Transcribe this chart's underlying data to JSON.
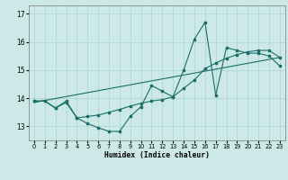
{
  "xlabel": "Humidex (Indice chaleur)",
  "bg_color": "#cce9e8",
  "line_color": "#1a6e68",
  "grid_color": "#b0d8d6",
  "xlim": [
    -0.5,
    23.5
  ],
  "ylim": [
    12.5,
    17.3
  ],
  "xticks": [
    0,
    1,
    2,
    3,
    4,
    5,
    6,
    7,
    8,
    9,
    10,
    11,
    12,
    13,
    14,
    15,
    16,
    17,
    18,
    19,
    20,
    21,
    22,
    23
  ],
  "yticks": [
    13,
    14,
    15,
    16,
    17
  ],
  "series1_x": [
    0,
    1,
    2,
    3,
    4,
    5,
    6,
    7,
    8,
    9,
    10,
    11,
    12,
    13,
    14,
    15,
    16,
    17,
    18,
    19,
    20,
    21,
    22,
    23
  ],
  "series1_y": [
    13.9,
    13.9,
    13.65,
    13.85,
    13.3,
    13.1,
    12.95,
    12.82,
    12.82,
    13.35,
    13.7,
    14.45,
    14.25,
    14.05,
    15.0,
    16.1,
    16.7,
    14.1,
    15.8,
    15.7,
    15.6,
    15.6,
    15.5,
    15.15
  ],
  "series2_x": [
    0,
    1,
    2,
    3,
    4,
    5,
    6,
    7,
    8,
    9,
    10,
    11,
    12,
    13,
    14,
    15,
    16,
    17,
    18,
    19,
    20,
    21,
    22,
    23
  ],
  "series2_y": [
    13.9,
    13.9,
    13.65,
    13.9,
    13.3,
    13.35,
    13.4,
    13.5,
    13.6,
    13.72,
    13.82,
    13.9,
    13.95,
    14.05,
    14.35,
    14.65,
    15.05,
    15.25,
    15.42,
    15.55,
    15.65,
    15.7,
    15.7,
    15.45
  ],
  "trend_x": [
    0,
    23
  ],
  "trend_y": [
    13.85,
    15.45
  ]
}
